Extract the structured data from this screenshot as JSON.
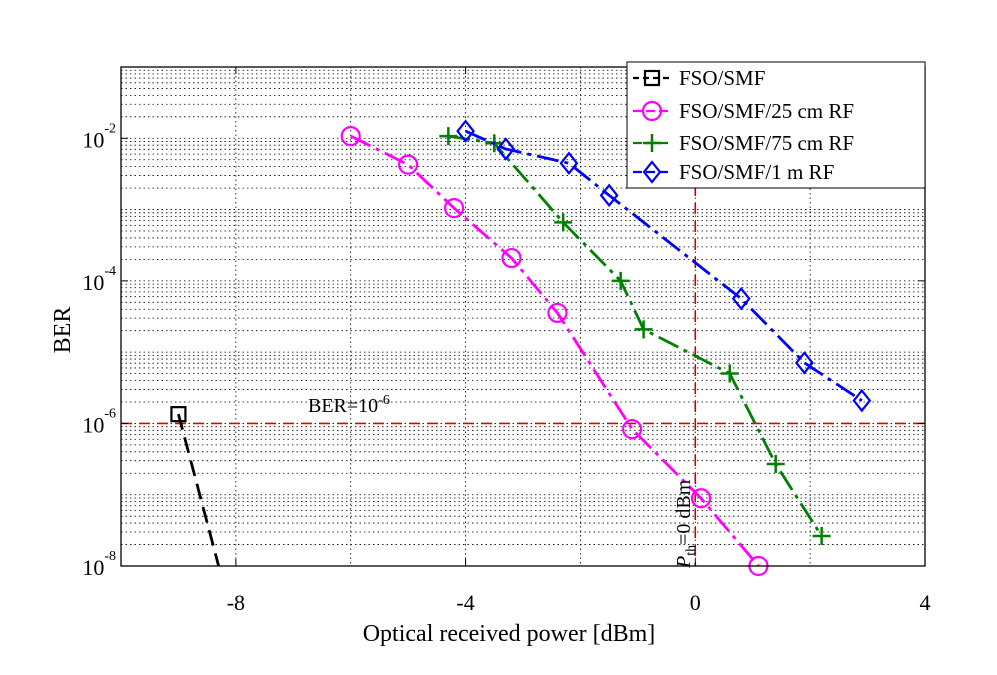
{
  "chart_data": {
    "type": "line",
    "title": "",
    "xlabel": "Optical received power [dBm]",
    "ylabel": "BER",
    "y_scale": "log",
    "xlim": [
      -10,
      4
    ],
    "ylim_exponent": [
      -8,
      -1
    ],
    "x_ticks": [
      -8,
      -4,
      0,
      4
    ],
    "x_tick_labels": [
      "-8",
      "-4",
      "0",
      "4"
    ],
    "y_ticks_exponent": [
      -8,
      -6,
      -4,
      -2
    ],
    "y_tick_base": "10",
    "y_tick_exponents": [
      "-8",
      "-6",
      "-4",
      "-2"
    ],
    "grid": true,
    "legend_position": "top-right",
    "series": [
      {
        "name": "FSO/SMF",
        "color": "#000000",
        "marker": "square",
        "points": [
          {
            "x": -9.0,
            "y_exp": -5.87,
            "marker": true
          },
          {
            "x": -8.3,
            "y_exp": -8.0,
            "marker": false
          }
        ]
      },
      {
        "name": "FSO/SMF/25 cm RF",
        "color": "#ff00ff",
        "marker": "circle",
        "points": [
          {
            "x": -6.0,
            "y_exp": -1.97
          },
          {
            "x": -5.0,
            "y_exp": -2.37
          },
          {
            "x": -4.2,
            "y_exp": -2.98
          },
          {
            "x": -3.2,
            "y_exp": -3.68
          },
          {
            "x": -2.4,
            "y_exp": -4.45
          },
          {
            "x": -1.1,
            "y_exp": -6.08
          },
          {
            "x": 0.1,
            "y_exp": -7.05
          },
          {
            "x": 1.1,
            "y_exp": -8.0
          }
        ]
      },
      {
        "name": "FSO/SMF/75 cm RF",
        "color": "#008000",
        "marker": "plus",
        "points": [
          {
            "x": -4.3,
            "y_exp": -1.97
          },
          {
            "x": -3.5,
            "y_exp": -2.07
          },
          {
            "x": -2.3,
            "y_exp": -3.18
          },
          {
            "x": -1.3,
            "y_exp": -4.0
          },
          {
            "x": -0.9,
            "y_exp": -4.68
          },
          {
            "x": 0.6,
            "y_exp": -5.3
          },
          {
            "x": 1.4,
            "y_exp": -6.57
          },
          {
            "x": 2.2,
            "y_exp": -7.58
          }
        ]
      },
      {
        "name": "FSO/SMF/1 m RF",
        "color": "#0000ff",
        "marker": "diamond",
        "points": [
          {
            "x": -4.0,
            "y_exp": -1.9
          },
          {
            "x": -3.3,
            "y_exp": -2.15
          },
          {
            "x": -2.2,
            "y_exp": -2.35
          },
          {
            "x": -1.5,
            "y_exp": -2.8
          },
          {
            "x": 0.8,
            "y_exp": -4.25
          },
          {
            "x": 1.9,
            "y_exp": -5.15
          },
          {
            "x": 2.9,
            "y_exp": -5.68
          }
        ]
      }
    ],
    "reference_lines": [
      {
        "orientation": "horizontal",
        "y_exp": -6,
        "color": "#e00000",
        "label_prefix": "BER=10",
        "label_exp": "-6"
      },
      {
        "orientation": "vertical",
        "x": 0,
        "color": "#cc0000",
        "label_symbol": "P",
        "label_sub": "th",
        "label_value": "=0 dBm"
      }
    ]
  }
}
